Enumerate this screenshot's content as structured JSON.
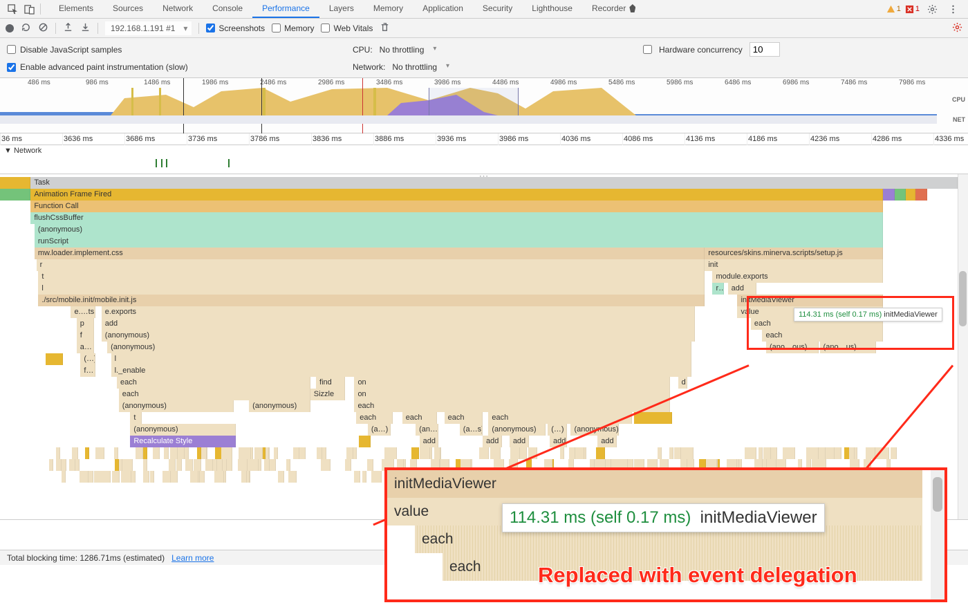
{
  "tabs": [
    "Elements",
    "Sources",
    "Network",
    "Console",
    "Performance",
    "Layers",
    "Memory",
    "Application",
    "Security",
    "Lighthouse",
    "Recorder"
  ],
  "activeTab": "Performance",
  "warnCount": "1",
  "errCount": "1",
  "toolbar": {
    "target": "192.168.1.191 #1",
    "screenshots": "Screenshots",
    "memory": "Memory",
    "webVitals": "Web Vitals"
  },
  "options": {
    "disableJs": "Disable JavaScript samples",
    "enablePaint": "Enable advanced paint instrumentation (slow)",
    "cpuLabel": "CPU:",
    "cpuValue": "No throttling",
    "netLabel": "Network:",
    "netValue": "No throttling",
    "hwLabel": "Hardware concurrency",
    "hwValue": "10"
  },
  "overview": {
    "labels": [
      "486 ms",
      "986 ms",
      "1486 ms",
      "1986 ms",
      "2486 ms",
      "2986 ms",
      "3486 ms",
      "3986 ms",
      "4486 ms",
      "4986 ms",
      "5486 ms",
      "5986 ms",
      "6486 ms",
      "6986 ms",
      "7486 ms",
      "7986 ms"
    ],
    "cpuLabel": "CPU",
    "netLabel": "NET"
  },
  "ruler": {
    "labels": [
      "36 ms",
      "3636 ms",
      "3686 ms",
      "3736 ms",
      "3786 ms",
      "3836 ms",
      "3886 ms",
      "3936 ms",
      "3986 ms",
      "4036 ms",
      "4086 ms",
      "4136 ms",
      "4186 ms",
      "4236 ms",
      "4286 ms",
      "4336 ms"
    ]
  },
  "netRow": "Network",
  "flame": {
    "task": "Task",
    "afFired": "Animation Frame Fired",
    "fnCall": "Function Call",
    "flushCss": "flushCssBuffer",
    "anon": "(anonymous)",
    "runScript": "runScript",
    "mwLoader": "mw.loader.implement.css",
    "setupJs": "resources/skins.minerva.scripts/setup.js",
    "r": "r",
    "t": "t",
    "l": "l",
    "init": "init",
    "moduleExports": "module.exports",
    "mobileInit": "./src/mobile.init/mobile.init.js",
    "ets": "e.…ts",
    "eexports": "e.exports",
    "p": "p",
    "add": "add",
    "f": "f",
    "a": "a…",
    "initMediaViewer": "initMediaViewer",
    "value": "value",
    "each": "each",
    "paren": "(…)",
    "fdots": "f…",
    "lEnable": "l._enable",
    "find": "find",
    "on": "on",
    "sizzle": "Sizzle",
    "anoOus": "(ano…ous)",
    "anous": "(ano…us)",
    "adots": "(a…)",
    "ans": "(an…s)",
    "as": "(a…s)",
    "recalc": "Recalculate Style",
    "d": "d",
    "rdots": "r…"
  },
  "tooltip": {
    "time": "114.31 ms (self 0.17 ms)",
    "fn": "initMediaViewer"
  },
  "status": {
    "blocking": "Total blocking time: 1286.71ms (estimated)",
    "learn": "Learn more"
  },
  "zoom": {
    "initMediaViewer": "initMediaViewer",
    "value": "value",
    "each": "each",
    "time": "114.31 ms (self 0.17 ms)",
    "caption": "Replaced with event delegation"
  },
  "colors": {
    "gray": "#cfd0d1",
    "ylw": "#e6b731",
    "orn": "#ecc174",
    "tan": "#e8d0ab",
    "tan2": "#efe0c2",
    "mint": "#aee4cc",
    "purp": "#9b7fd4",
    "highlight": "#ff2a1a",
    "tooltipTime": "#1e8e3e"
  }
}
